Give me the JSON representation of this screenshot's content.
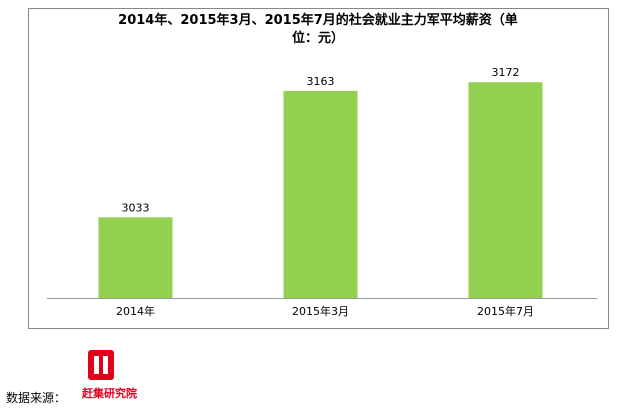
{
  "chart_data": {
    "type": "bar",
    "title": "2014年、2015年3月、2015年7月的社会就业主力军平均薪资（单位：元）",
    "categories": [
      "2014年",
      "2015年3月",
      "2015年7月"
    ],
    "values": [
      3033,
      3163,
      3172
    ],
    "color": "#92d050",
    "ylim": [
      2950,
      3200
    ]
  },
  "footer": {
    "source_label": "数据来源：",
    "logo_text": "赶集研究院"
  }
}
